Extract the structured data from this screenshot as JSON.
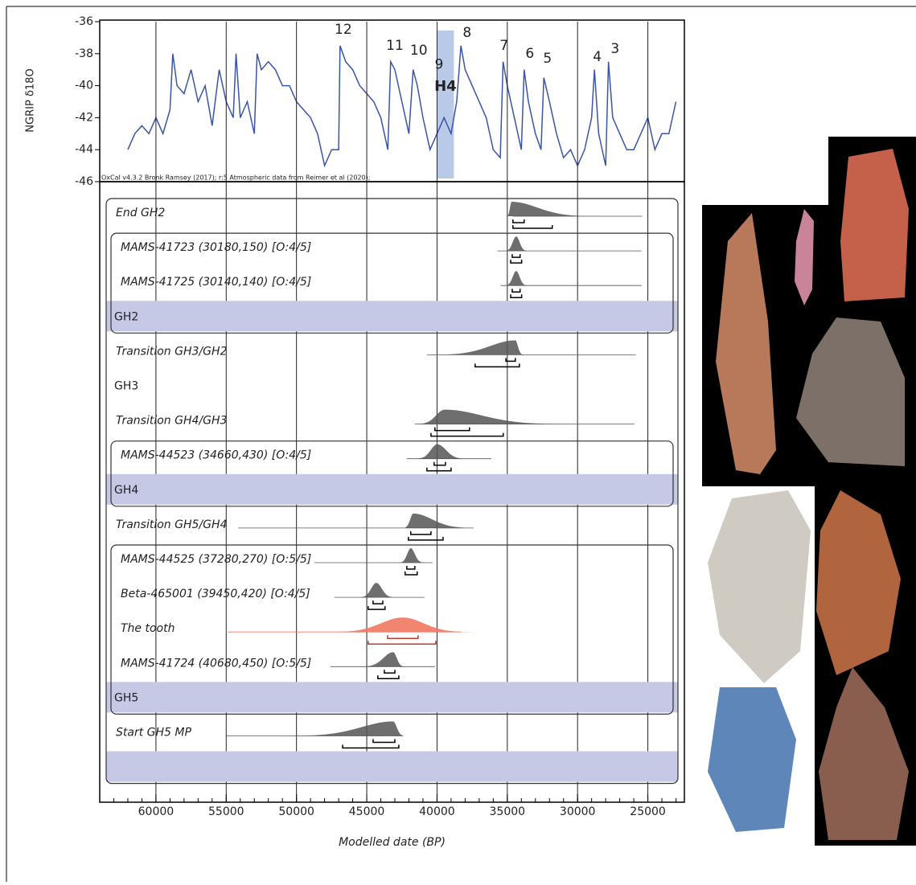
{
  "chart_data": [
    {
      "type": "line",
      "ylabel": "NGRIP δ18O",
      "credit": "OxCal v4.3.2 Bronk Ramsey (2017); r:5 Atmospheric data from Reimer et al (2020);",
      "color": "#3a55a8",
      "ylim": [
        -46,
        -36
      ],
      "yticks": [
        -36,
        -38,
        -40,
        -42,
        -44,
        -46
      ],
      "xlim": [
        64000,
        22400
      ],
      "x": [
        62000,
        61500,
        61000,
        60500,
        60000,
        59500,
        59000,
        58800,
        58500,
        58000,
        57500,
        57000,
        56500,
        56000,
        55500,
        55000,
        54500,
        54300,
        54000,
        53500,
        53000,
        52800,
        52500,
        52000,
        51500,
        51000,
        50500,
        50000,
        49500,
        49000,
        48500,
        48000,
        47500,
        47000,
        46900,
        46500,
        46000,
        45500,
        45000,
        44500,
        44000,
        43500,
        43300,
        43000,
        42500,
        42000,
        41700,
        41400,
        41000,
        40500,
        40000,
        39500,
        39000,
        38600,
        38300,
        38000,
        37500,
        37000,
        36500,
        36000,
        35500,
        35300,
        35000,
        34500,
        34000,
        33800,
        33500,
        33000,
        32600,
        32400,
        32000,
        31500,
        31000,
        30500,
        30000,
        29500,
        29000,
        28800,
        28500,
        28000,
        27800,
        27500,
        27000,
        26500,
        26000,
        25500,
        25000,
        24500,
        24000,
        23500,
        23000
      ],
      "values": [
        -44,
        -43,
        -42.5,
        -43,
        -42,
        -43,
        -41.5,
        -38,
        -40,
        -40.5,
        -39,
        -41,
        -40,
        -42.5,
        -39,
        -41,
        -42,
        -38,
        -42,
        -41,
        -43,
        -38,
        -39,
        -38.5,
        -39,
        -40,
        -40,
        -41,
        -41.5,
        -42,
        -43,
        -45,
        -44,
        -44,
        -37.5,
        -38.5,
        -39,
        -40,
        -40.5,
        -41,
        -42,
        -44,
        -38.5,
        -39,
        -41,
        -43,
        -39,
        -40,
        -42,
        -44,
        -43,
        -42,
        -43,
        -41,
        -37.5,
        -39,
        -40,
        -41,
        -42,
        -44,
        -44.5,
        -38.5,
        -40,
        -42,
        -44,
        -39,
        -41,
        -43,
        -44,
        -39.5,
        -41,
        -43,
        -44.5,
        -44,
        -45,
        -44,
        -42,
        -39,
        -43,
        -45,
        -38.5,
        -42,
        -43,
        -44,
        -44,
        -43,
        -42,
        -44,
        -43,
        -43,
        -41
      ],
      "band": {
        "label": "H4",
        "range": [
          40000,
          38800
        ]
      },
      "annotations": [
        {
          "text": "12",
          "x": 46670,
          "y": -36.5
        },
        {
          "text": "11",
          "x": 43000,
          "y": -37.5
        },
        {
          "text": "10",
          "x": 41300,
          "y": -37.8
        },
        {
          "text": "9",
          "x": 39860,
          "y": -38.7
        },
        {
          "text": "8",
          "x": 37860,
          "y": -36.7
        },
        {
          "text": "7",
          "x": 35230,
          "y": -37.5
        },
        {
          "text": "6",
          "x": 33400,
          "y": -38
        },
        {
          "text": "5",
          "x": 32140,
          "y": -38.3
        },
        {
          "text": "4",
          "x": 28600,
          "y": -38.2
        },
        {
          "text": "3",
          "x": 27330,
          "y": -37.7
        }
      ]
    },
    {
      "type": "distribution",
      "xlabel": "Modelled date (BP)",
      "xlim": [
        64000,
        22400
      ],
      "xticks": [
        60000,
        55000,
        50000,
        45000,
        40000,
        35000,
        30000,
        25000
      ],
      "color": "#555555",
      "highlight_color": "#f07860",
      "rows": [
        {
          "label": "End GH2",
          "kind": "boundary",
          "peak": 34700,
          "range": [
            34600,
            25400
          ],
          "hpd68": [
            34600,
            33800
          ],
          "hpd95": [
            34600,
            31800
          ]
        },
        {
          "label": "MAMS-41723 (30180,150) [O:4/5]",
          "kind": "date",
          "peak": 34370,
          "range": [
            35700,
            25450
          ],
          "hpd68": [
            34650,
            34090
          ],
          "hpd95": [
            34760,
            33980
          ]
        },
        {
          "label": "MAMS-41725 (30140,140) [O:4/5]",
          "kind": "date",
          "peak": 34370,
          "range": [
            35470,
            25450
          ],
          "hpd68": [
            34650,
            34090
          ],
          "hpd95": [
            34760,
            33980
          ]
        },
        {
          "label": "GH2",
          "kind": "phase"
        },
        {
          "label": "Transition GH3/GH2",
          "kind": "boundary",
          "peak": 34430,
          "range": [
            40720,
            25850
          ],
          "hpd68": [
            35100,
            34430
          ],
          "hpd95": [
            37290,
            34140
          ]
        },
        {
          "label": "GH3",
          "kind": "label"
        },
        {
          "label": "Transition GH4/GH3",
          "kind": "boundary",
          "peak": 39460,
          "range": [
            41580,
            25960
          ],
          "hpd68": [
            40150,
            37690
          ],
          "hpd95": [
            40430,
            35290
          ]
        },
        {
          "label": "MAMS-44523 (34660,430) [O:4/5]",
          "kind": "date",
          "peak": 39980,
          "range": [
            42150,
            36140
          ],
          "hpd68": [
            40210,
            39400
          ],
          "hpd95": [
            40720,
            39000
          ]
        },
        {
          "label": "GH4",
          "kind": "phase"
        },
        {
          "label": "Transition GH5/GH4",
          "kind": "boundary",
          "peak": 41690,
          "range": [
            54160,
            37400
          ],
          "hpd68": [
            41870,
            40430
          ],
          "hpd95": [
            42040,
            39570
          ]
        },
        {
          "label": "MAMS-44525 (37280,270) [O:5/5]",
          "kind": "date",
          "peak": 41870,
          "range": [
            48730,
            40320
          ],
          "hpd68": [
            42150,
            41580
          ],
          "hpd95": [
            42270,
            41410
          ]
        },
        {
          "label": "Beta-465001 (39450,420) [O:4/5]",
          "kind": "date",
          "peak": 44320,
          "range": [
            47300,
            40890
          ],
          "hpd68": [
            44550,
            43860
          ],
          "hpd95": [
            44900,
            43700
          ]
        },
        {
          "label": "The tooth",
          "kind": "highlight",
          "peak": 42440,
          "range": [
            54900,
            38320
          ],
          "hpd68": [
            43520,
            41350
          ],
          "hpd95": [
            44900,
            40090
          ]
        },
        {
          "label": "MAMS-41724 (40680,450) [O:5/5]",
          "kind": "date",
          "peak": 43120,
          "range": [
            47580,
            40150
          ],
          "hpd68": [
            43750,
            43000
          ],
          "hpd95": [
            44210,
            42720
          ]
        },
        {
          "label": "GH5",
          "kind": "phase"
        },
        {
          "label": "Start GH5 MP",
          "kind": "boundary",
          "peak": 43120,
          "range": [
            55020,
            42440
          ],
          "hpd68": [
            44550,
            43000
          ],
          "hpd95": [
            46720,
            42720
          ]
        },
        {
          "kind": "phase"
        }
      ]
    }
  ]
}
